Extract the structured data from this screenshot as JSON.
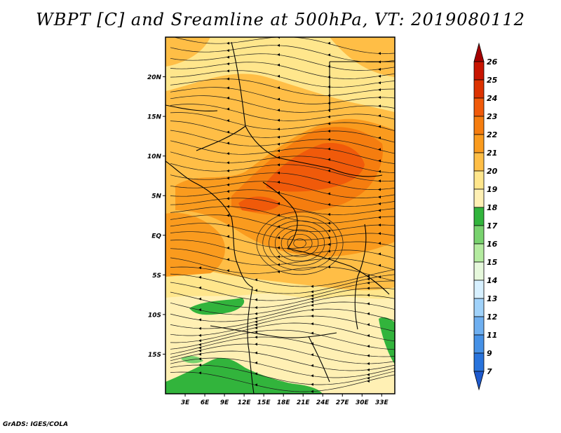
{
  "title": "WBPT [C] and Sreamline at 500hPa, VT: 2019080112",
  "credit": "GrADS: IGES/COLA",
  "map": {
    "lat_labels": [
      "20N",
      "15N",
      "10N",
      "5N",
      "EQ",
      "5S",
      "10S",
      "15S"
    ],
    "lat_values": [
      20,
      15,
      10,
      5,
      0,
      -5,
      -10,
      -15
    ],
    "lon_labels": [
      "3E",
      "6E",
      "9E",
      "12E",
      "15E",
      "18E",
      "21E",
      "24E",
      "27E",
      "30E",
      "33E"
    ],
    "lon_values": [
      3,
      6,
      9,
      12,
      15,
      18,
      21,
      24,
      27,
      30,
      33
    ],
    "lon_range": [
      0,
      35
    ],
    "lat_range": [
      -20,
      25
    ]
  },
  "colorbar": {
    "labels": [
      "26",
      "25",
      "24",
      "23",
      "22",
      "21",
      "20",
      "19",
      "18",
      "17",
      "16",
      "15",
      "14",
      "13",
      "12",
      "11",
      "9",
      "7"
    ],
    "colors": [
      "#a50000",
      "#c81400",
      "#dc3200",
      "#f05a0a",
      "#f57d0f",
      "#fa9b1e",
      "#ffbe46",
      "#ffe68c",
      "#fff0b4",
      "#32b43c",
      "#78d26e",
      "#b4eba0",
      "#e6f8dc",
      "#d7f0ff",
      "#a0d2fa",
      "#6eaff0",
      "#4691e6",
      "#2873dc",
      "#1e5acd"
    ]
  }
}
